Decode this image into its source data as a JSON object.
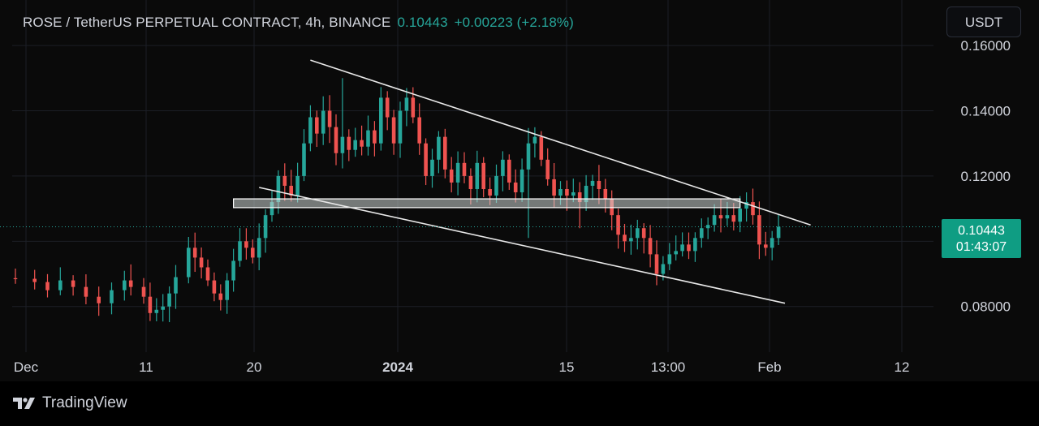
{
  "header": {
    "symbol": "ROSE / TetherUS PERPETUAL CONTRACT",
    "interval": "4h",
    "exchange": "BINANCE",
    "last_price": "0.10443",
    "change": "+0.00223",
    "change_pct": "(+2.18%)"
  },
  "toolbar": {
    "currency_label": "USDT"
  },
  "price_tag": {
    "price": "0.10443",
    "countdown": "01:43:07"
  },
  "footer": {
    "brand": "TradingView"
  },
  "colors": {
    "up": "#26a69a",
    "down": "#ef5350",
    "grid": "#1c1f26",
    "axis_text": "#d1d4dc",
    "trendline": "#e8e8e8",
    "zone_fill": "#cdd6d4"
  },
  "icons": {
    "brand_logo": "tradingview-logo-icon"
  },
  "chart_data": {
    "type": "candlestick",
    "title": "ROSE / TetherUS PERPETUAL CONTRACT, 4h, BINANCE",
    "ylim": [
      0.0675,
      0.163
    ],
    "y_ticks": [
      0.08,
      0.12,
      0.14,
      0.16
    ],
    "y_tick_labels": [
      "0.08000",
      "0.12000",
      "0.14000",
      "0.16000"
    ],
    "x_ticks": [
      {
        "label": "Dec",
        "bold": false
      },
      {
        "label": "11",
        "bold": false
      },
      {
        "label": "20",
        "bold": false
      },
      {
        "label": "2024",
        "bold": true
      },
      {
        "label": "15",
        "bold": false
      },
      {
        "label": "13:00",
        "bold": false
      },
      {
        "label": "Feb",
        "bold": false
      },
      {
        "label": "12",
        "bold": false
      }
    ],
    "grid": true,
    "current_price": 0.10443,
    "close_path": [
      [
        0,
        0.0885
      ],
      [
        3,
        0.0875
      ],
      [
        5,
        0.085
      ],
      [
        7,
        0.088
      ],
      [
        9,
        0.086
      ],
      [
        11,
        0.083
      ],
      [
        13,
        0.081
      ],
      [
        15,
        0.085
      ],
      [
        17,
        0.088
      ],
      [
        18,
        0.086
      ],
      [
        20,
        0.083
      ],
      [
        21,
        0.078
      ],
      [
        22,
        0.079
      ],
      [
        23,
        0.08
      ],
      [
        24,
        0.084
      ],
      [
        25,
        0.089
      ],
      [
        27,
        0.098
      ],
      [
        28,
        0.095
      ],
      [
        29,
        0.092
      ],
      [
        30,
        0.088
      ],
      [
        31,
        0.084
      ],
      [
        32,
        0.082
      ],
      [
        33,
        0.088
      ],
      [
        34,
        0.094
      ],
      [
        35,
        0.1
      ],
      [
        36,
        0.098
      ],
      [
        37,
        0.095
      ],
      [
        38,
        0.101
      ],
      [
        39,
        0.108
      ],
      [
        40,
        0.112
      ],
      [
        41,
        0.12
      ],
      [
        42,
        0.117
      ],
      [
        43,
        0.114
      ],
      [
        44,
        0.12
      ],
      [
        45,
        0.13
      ],
      [
        46,
        0.138
      ],
      [
        47,
        0.133
      ],
      [
        48,
        0.14
      ],
      [
        49,
        0.135
      ],
      [
        50,
        0.127
      ],
      [
        51,
        0.132
      ],
      [
        52,
        0.128
      ],
      [
        53,
        0.131
      ],
      [
        54,
        0.129
      ],
      [
        55,
        0.134
      ],
      [
        56,
        0.13
      ],
      [
        57,
        0.144
      ],
      [
        58,
        0.138
      ],
      [
        59,
        0.13
      ],
      [
        60,
        0.14
      ],
      [
        61,
        0.144
      ],
      [
        62,
        0.138
      ],
      [
        63,
        0.13
      ],
      [
        64,
        0.12
      ],
      [
        65,
        0.125
      ],
      [
        66,
        0.132
      ],
      [
        67,
        0.122
      ],
      [
        68,
        0.118
      ],
      [
        69,
        0.124
      ],
      [
        70,
        0.12
      ],
      [
        71,
        0.116
      ],
      [
        72,
        0.124
      ],
      [
        73,
        0.116
      ],
      [
        74,
        0.114
      ],
      [
        75,
        0.12
      ],
      [
        76,
        0.125
      ],
      [
        77,
        0.118
      ],
      [
        78,
        0.115
      ],
      [
        79,
        0.122
      ],
      [
        80,
        0.13
      ],
      [
        81,
        0.132
      ],
      [
        82,
        0.125
      ],
      [
        83,
        0.119
      ],
      [
        84,
        0.114
      ],
      [
        85,
        0.116
      ],
      [
        86,
        0.114
      ],
      [
        87,
        0.115
      ],
      [
        88,
        0.112
      ],
      [
        89,
        0.117
      ],
      [
        90,
        0.1185
      ],
      [
        91,
        0.116
      ],
      [
        92,
        0.113
      ],
      [
        93,
        0.108
      ],
      [
        94,
        0.102
      ],
      [
        95,
        0.1
      ],
      [
        96,
        0.101
      ],
      [
        97,
        0.104
      ],
      [
        98,
        0.101
      ],
      [
        99,
        0.096
      ],
      [
        100,
        0.09
      ],
      [
        101,
        0.093
      ],
      [
        102,
        0.096
      ],
      [
        103,
        0.097
      ],
      [
        104,
        0.099
      ],
      [
        105,
        0.097
      ],
      [
        106,
        0.101
      ],
      [
        107,
        0.104
      ],
      [
        108,
        0.105
      ],
      [
        109,
        0.108
      ],
      [
        110,
        0.107
      ],
      [
        111,
        0.108
      ],
      [
        112,
        0.106
      ],
      [
        113,
        0.11
      ],
      [
        114,
        0.112
      ],
      [
        115,
        0.108
      ],
      [
        116,
        0.099
      ],
      [
        117,
        0.098
      ],
      [
        118,
        0.101
      ],
      [
        119,
        0.10443
      ]
    ],
    "spikes": [
      {
        "index": 51,
        "high": 0.15
      },
      {
        "index": 80,
        "low": 0.101
      },
      {
        "index": 88,
        "low": 0.104
      },
      {
        "index": 101,
        "low": 0.088
      }
    ],
    "annotations": {
      "upper_trendline": {
        "start_index": 46,
        "start_price": 0.1555,
        "end_index": 124,
        "end_price": 0.105
      },
      "lower_trendline": {
        "start_index": 38,
        "start_price": 0.1165,
        "end_index": 120,
        "end_price": 0.081
      },
      "resistance_zone": {
        "start_index": 34,
        "end_index": 113,
        "top": 0.113,
        "bottom": 0.1103
      }
    }
  }
}
